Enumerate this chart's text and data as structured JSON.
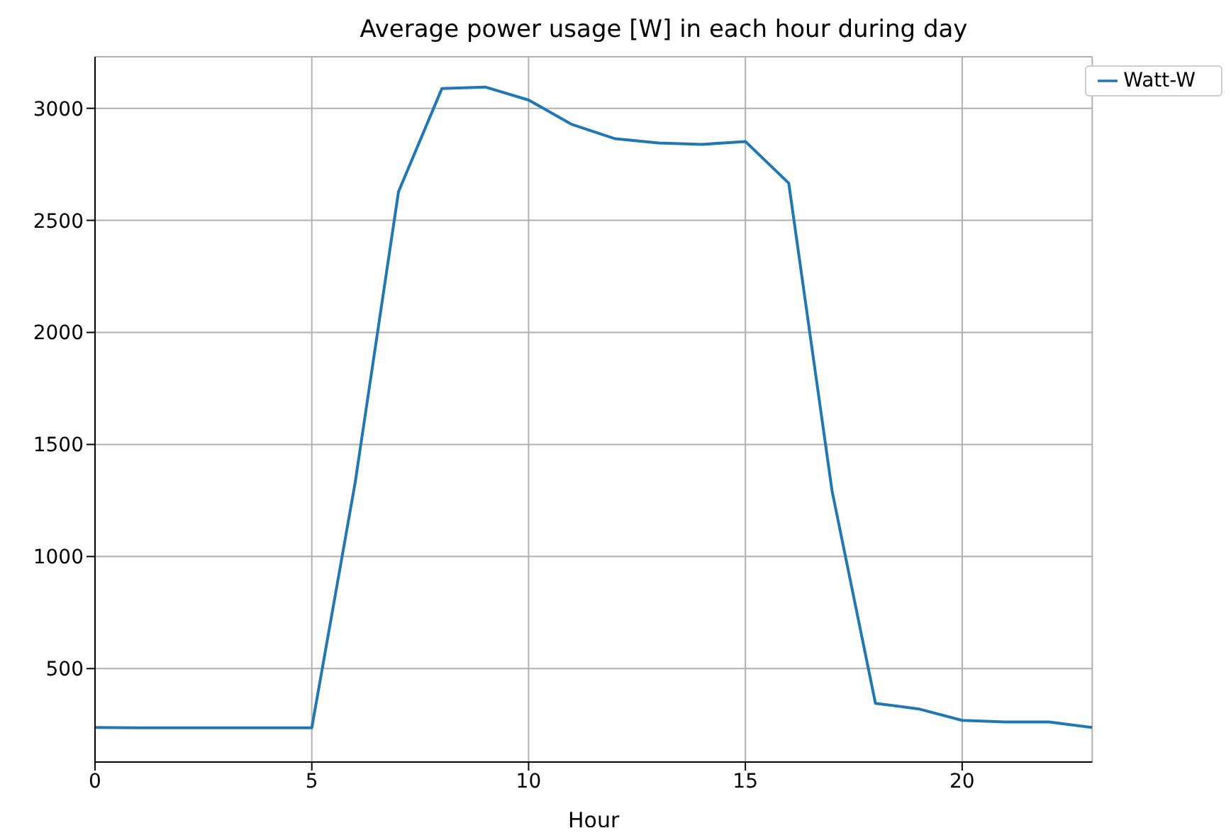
{
  "chart_data": {
    "type": "line",
    "title": "Average power usage [W] in each hour during day",
    "xlabel": "Hour",
    "x": [
      0,
      1,
      2,
      3,
      4,
      5,
      6,
      7,
      8,
      9,
      10,
      11,
      12,
      13,
      14,
      15,
      16,
      17,
      18,
      19,
      20,
      21,
      22,
      23
    ],
    "series": [
      {
        "name": "Watt-W",
        "color": "#1f77b4",
        "values": [
          237,
          236,
          236,
          236,
          236,
          236,
          1330,
          2628,
          3088,
          3095,
          3037,
          2928,
          2864,
          2845,
          2839,
          2852,
          2666,
          1292,
          345,
          320,
          269,
          262,
          262,
          237
        ]
      }
    ],
    "xlim": [
      0,
      23
    ],
    "ylim": [
      83,
      3230
    ],
    "xticks": [
      0,
      5,
      10,
      15,
      20
    ],
    "yticks": [
      500,
      1000,
      1500,
      2000,
      2500,
      3000
    ],
    "grid": true,
    "legend": "top right",
    "marker": "none",
    "line_style": "solid"
  }
}
